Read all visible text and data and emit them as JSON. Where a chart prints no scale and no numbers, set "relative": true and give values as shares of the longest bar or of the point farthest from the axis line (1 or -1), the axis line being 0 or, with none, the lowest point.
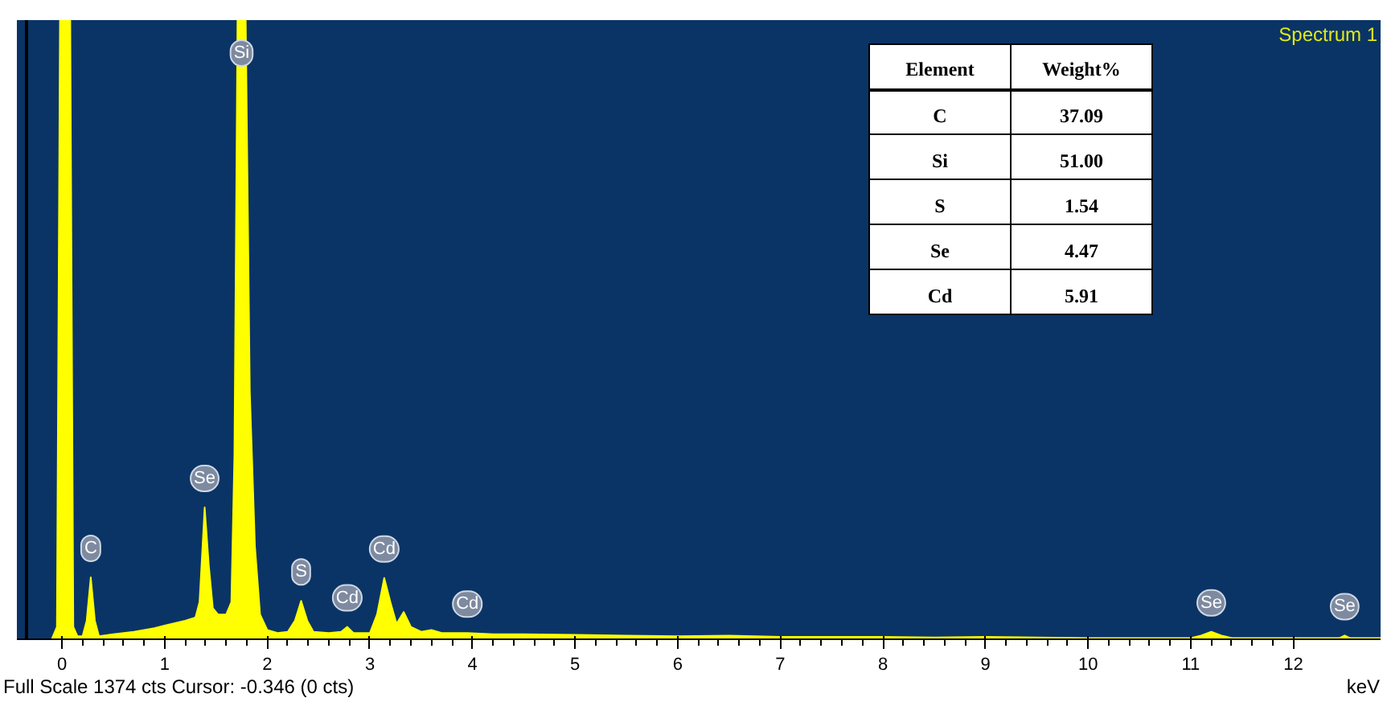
{
  "chart_data": {
    "type": "area",
    "title": "Spectrum 1",
    "xlabel": "keV",
    "relative": true,
    "color": "#ffff00",
    "x": [
      -0.1,
      -0.05,
      -0.02,
      0.08,
      0.11,
      0.15,
      0.2,
      0.24,
      0.28,
      0.32,
      0.36,
      0.5,
      0.6,
      0.7,
      0.8,
      0.9,
      1.0,
      1.1,
      1.2,
      1.3,
      1.34,
      1.39,
      1.43,
      1.47,
      1.52,
      1.6,
      1.65,
      1.68,
      1.71,
      1.79,
      1.83,
      1.88,
      1.93,
      2.0,
      2.1,
      2.2,
      2.27,
      2.33,
      2.39,
      2.45,
      2.6,
      2.72,
      2.78,
      2.84,
      3.0,
      3.07,
      3.14,
      3.2,
      3.26,
      3.33,
      3.4,
      3.5,
      3.6,
      3.7,
      3.95,
      4.2,
      4.5,
      5.0,
      5.5,
      6.0,
      6.5,
      7.0,
      7.5,
      8.0,
      8.5,
      9.0,
      9.5,
      10.0,
      10.5,
      11.0,
      11.1,
      11.2,
      11.3,
      11.4,
      12.0,
      12.45,
      12.5,
      12.55,
      12.85
    ],
    "values": [
      0,
      0.02,
      1.0,
      1.0,
      0.02,
      0.005,
      0.005,
      0.03,
      0.1,
      0.03,
      0.005,
      0.008,
      0.01,
      0.012,
      0.015,
      0.018,
      0.022,
      0.026,
      0.03,
      0.035,
      0.06,
      0.213,
      0.12,
      0.05,
      0.04,
      0.04,
      0.06,
      0.3,
      1.0,
      1.0,
      0.4,
      0.15,
      0.04,
      0.015,
      0.01,
      0.012,
      0.03,
      0.062,
      0.03,
      0.012,
      0.01,
      0.012,
      0.02,
      0.01,
      0.01,
      0.04,
      0.099,
      0.06,
      0.025,
      0.044,
      0.02,
      0.012,
      0.015,
      0.01,
      0.01,
      0.008,
      0.008,
      0.007,
      0.006,
      0.005,
      0.006,
      0.004,
      0.004,
      0.004,
      0.003,
      0.004,
      0.003,
      0.002,
      0.002,
      0.002,
      0.006,
      0.012,
      0.006,
      0.002,
      0.002,
      0.002,
      0.006,
      0.002,
      0.002
    ],
    "xlim": [
      -0.44,
      12.85
    ],
    "xticks": [
      0,
      1,
      2,
      3,
      4,
      5,
      6,
      7,
      8,
      9,
      10,
      11,
      12
    ],
    "ref_lines": [
      {
        "axis": "x",
        "value": -0.346,
        "color": "#000000"
      }
    ],
    "annotations": [
      {
        "text": "C",
        "x": 0.28,
        "y": 0.1
      },
      {
        "text": "Se",
        "x": 1.39,
        "y": 0.213
      },
      {
        "text": "Si",
        "x": 1.75,
        "y": 1.0
      },
      {
        "text": "S",
        "x": 2.33,
        "y": 0.062
      },
      {
        "text": "Cd",
        "x": 2.78,
        "y": 0.02
      },
      {
        "text": "Cd",
        "x": 3.14,
        "y": 0.099
      },
      {
        "text": "Cd",
        "x": 3.95,
        "y": 0.01
      },
      {
        "text": "Se",
        "x": 11.2,
        "y": 0.012
      },
      {
        "text": "Se",
        "x": 12.5,
        "y": 0.006
      },
      "Full Scale 1374 cts Cursor: -0.346  (0 cts)",
      "Element",
      "Weight%",
      "C",
      "37.09",
      "Si",
      "51.00",
      "S",
      "1.54",
      "Se",
      "4.47",
      "Cd",
      "5.91"
    ]
  }
}
